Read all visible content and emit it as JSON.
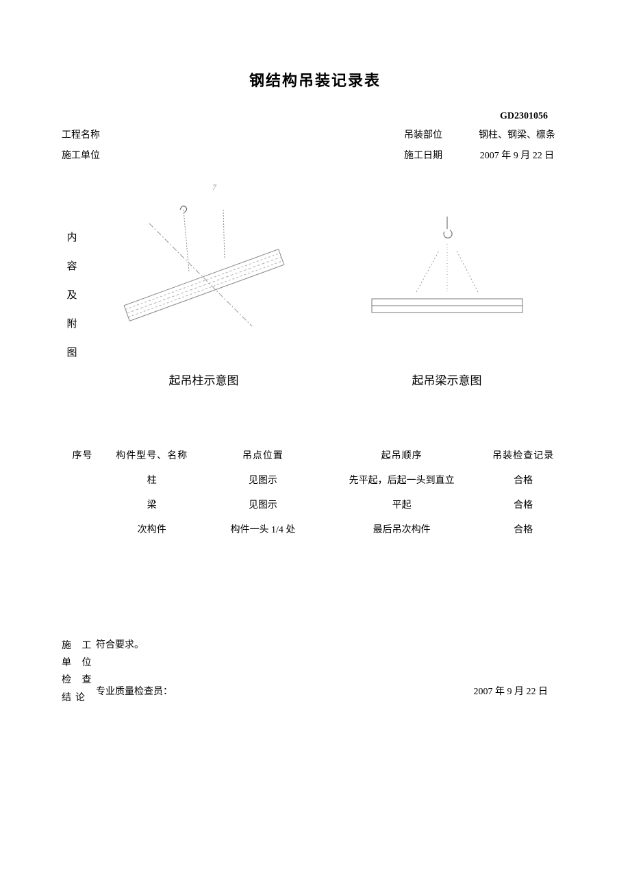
{
  "title": "钢结构吊装记录表",
  "doc_code": "GD2301056",
  "header": {
    "proj_label": "工程名称",
    "unit_label": "施工单位",
    "part_label": "吊装部位",
    "part_value": "钢柱、钢梁、檩条",
    "date_label": "施工日期",
    "date_value": "2007 年 9 月 22 日"
  },
  "vlabel": [
    "内",
    "容",
    "及",
    "附",
    "图"
  ],
  "small7": "7",
  "diagram": {
    "caption1": "起吊柱示意图",
    "caption2": "起吊梁示意图",
    "stroke_light": "#b0b0b0",
    "stroke_dark": "#666666",
    "stroke_width_thin": 0.8,
    "stroke_width_med": 1.2
  },
  "table": {
    "headers": [
      "序号",
      "构件型号、名称",
      "吊点位置",
      "起吊顺序",
      "吊装检查记录"
    ],
    "rows": [
      [
        "",
        "柱",
        "见图示",
        "先平起，后起一头到直立",
        "合格"
      ],
      [
        "",
        "梁",
        "见图示",
        "平起",
        "合格"
      ],
      [
        "",
        "次构件",
        "构件一头 1/4 处",
        "最后吊次构件",
        "合格"
      ]
    ],
    "col_widths": [
      "60px",
      "140px",
      "180px",
      "220px",
      "130px"
    ]
  },
  "conclusion": {
    "label": [
      "施 工",
      "单 位",
      "检 查",
      "结论"
    ],
    "text": "符合要求。",
    "inspector_label": "专业质量检查员：",
    "date": "2007 年 9 月 22 日"
  }
}
